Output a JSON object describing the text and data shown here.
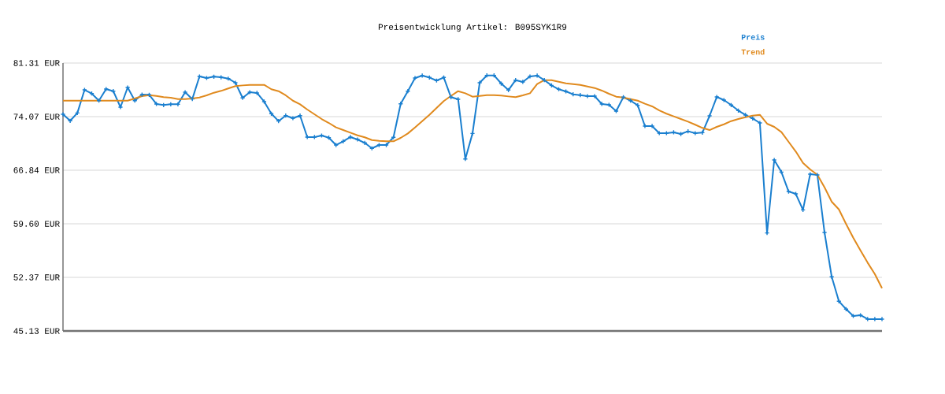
{
  "chart_data": {
    "type": "line",
    "title": "Preisentwicklung Artikel: B095SYK1R9",
    "categories": [
      null,
      null,
      null,
      null,
      null,
      null,
      null,
      null,
      null,
      null,
      null,
      null,
      null,
      null,
      null,
      null,
      null,
      null,
      null,
      null,
      null,
      null,
      null,
      null,
      null,
      null,
      null,
      null,
      null,
      null,
      null,
      null,
      null,
      null,
      null,
      null,
      null,
      null,
      null,
      null,
      null,
      null,
      null,
      null,
      null,
      null,
      null,
      null,
      null,
      null,
      null,
      null,
      null,
      null,
      null,
      null,
      null,
      null,
      null,
      null,
      null,
      null,
      null,
      null,
      null,
      null,
      null,
      null,
      null,
      null,
      null,
      null,
      null,
      null,
      null,
      null,
      null,
      null,
      null,
      null,
      null,
      null,
      null,
      null,
      null,
      null,
      null,
      null,
      null,
      null,
      null,
      null,
      null,
      null,
      null,
      null,
      null,
      null,
      null,
      null,
      null,
      null,
      null,
      null,
      null,
      null,
      null,
      null,
      null,
      null,
      null,
      null,
      null,
      null,
      null
    ],
    "series": [
      {
        "name": "Preis",
        "color": "#1a7fcf",
        "marker": "cross",
        "values": [
          74.39,
          73.51,
          74.57,
          77.69,
          77.19,
          76.23,
          77.8,
          77.51,
          75.35,
          78.01,
          76.23,
          77.05,
          77.02,
          75.78,
          75.64,
          75.74,
          75.74,
          77.37,
          76.45,
          79.5,
          79.29,
          79.47,
          79.39,
          79.21,
          78.65,
          76.6,
          77.37,
          77.27,
          76.1,
          74.47,
          73.47,
          74.21,
          73.86,
          74.21,
          71.31,
          71.31,
          71.52,
          71.23,
          70.24,
          70.74,
          71.31,
          70.99,
          70.53,
          69.79,
          70.24,
          70.24,
          71.28,
          75.81,
          77.51,
          79.29,
          79.61,
          79.36,
          78.94,
          79.36,
          76.7,
          76.42,
          68.36,
          71.8,
          78.65,
          79.64,
          79.64,
          78.54,
          77.66,
          79.0,
          78.76,
          79.5,
          79.61,
          79.0,
          78.29,
          77.77,
          77.48,
          77.09,
          76.98,
          76.84,
          76.84,
          75.78,
          75.67,
          74.82,
          76.7,
          76.23,
          75.6,
          72.8,
          72.8,
          71.84,
          71.84,
          71.95,
          71.73,
          72.09,
          71.84,
          71.91,
          74.18,
          76.73,
          76.31,
          75.64,
          74.89,
          74.29,
          73.83,
          73.22,
          58.36,
          68.22,
          66.59,
          63.96,
          63.64,
          61.48,
          66.3,
          66.2,
          58.43,
          52.44,
          49.14,
          48.08,
          47.15,
          47.26,
          46.73,
          46.73,
          46.73
        ]
      },
      {
        "name": "Trend",
        "color": "#e08a1e",
        "marker": "none",
        "values": [
          76.23,
          76.23,
          76.23,
          76.23,
          76.23,
          76.23,
          76.23,
          76.23,
          76.23,
          76.23,
          76.52,
          76.84,
          76.98,
          76.87,
          76.7,
          76.63,
          76.45,
          76.45,
          76.52,
          76.66,
          76.95,
          77.3,
          77.55,
          77.87,
          78.19,
          78.29,
          78.36,
          78.36,
          78.36,
          77.77,
          77.51,
          76.95,
          76.23,
          75.74,
          75.03,
          74.39,
          73.75,
          73.22,
          72.62,
          72.27,
          71.91,
          71.55,
          71.28,
          70.91,
          70.81,
          70.74,
          70.74,
          71.2,
          71.8,
          72.62,
          73.47,
          74.32,
          75.24,
          76.17,
          76.87,
          77.51,
          77.23,
          76.77,
          76.87,
          76.98,
          76.98,
          76.91,
          76.8,
          76.7,
          76.95,
          77.23,
          78.47,
          79.0,
          79.0,
          78.79,
          78.58,
          78.47,
          78.36,
          78.15,
          77.94,
          77.59,
          77.16,
          76.77,
          76.66,
          76.45,
          76.23,
          75.81,
          75.46,
          74.92,
          74.47,
          74.11,
          73.75,
          73.4,
          72.98,
          72.55,
          72.26,
          72.69,
          73.04,
          73.47,
          73.75,
          74.0,
          74.21,
          74.32,
          73.12,
          72.69,
          71.98,
          70.67,
          69.36,
          67.83,
          66.95,
          66.23,
          64.53,
          62.58,
          61.55,
          59.57,
          57.72,
          56.02,
          54.35,
          52.82,
          50.91
        ]
      }
    ],
    "ylim": [
      45.13,
      81.31
    ],
    "yticks": [
      {
        "value": 45.13,
        "label": "45.13 EUR"
      },
      {
        "value": 52.37,
        "label": "52.37 EUR"
      },
      {
        "value": 59.6,
        "label": "59.60 EUR"
      },
      {
        "value": 66.84,
        "label": "66.84 EUR"
      },
      {
        "value": 74.07,
        "label": "74.07 EUR"
      },
      {
        "value": 81.31,
        "label": "81.31 EUR"
      }
    ],
    "grid": "y",
    "legend": "top right",
    "tick_labels": "y",
    "line_style": "solid"
  }
}
